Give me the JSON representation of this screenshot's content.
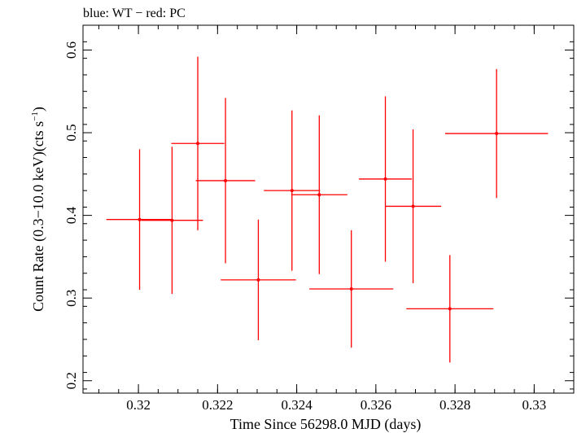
{
  "chart_data": {
    "type": "scatter",
    "title": "blue: WT − red: PC",
    "xlabel": "Time Since 56298.0 MJD (days)",
    "ylabel_main": "Count Rate (0.3−10.0 keV)(cts s",
    "ylabel_sup": "−1",
    "ylabel_close": ")",
    "xlim": [
      0.3186,
      0.331
    ],
    "ylim": [
      0.185,
      0.63
    ],
    "xticks": [
      {
        "value": 0.32,
        "label": "0.32"
      },
      {
        "value": 0.322,
        "label": "0.322"
      },
      {
        "value": 0.324,
        "label": "0.324"
      },
      {
        "value": 0.326,
        "label": "0.326"
      },
      {
        "value": 0.328,
        "label": "0.328"
      },
      {
        "value": 0.33,
        "label": "0.33"
      }
    ],
    "yticks": [
      {
        "value": 0.2,
        "label": "0.2"
      },
      {
        "value": 0.3,
        "label": "0.3"
      },
      {
        "value": 0.4,
        "label": "0.4"
      },
      {
        "value": 0.5,
        "label": "0.5"
      },
      {
        "value": 0.6,
        "label": "0.6"
      }
    ],
    "series": [
      {
        "name": "PC",
        "color": "#ff0000",
        "points": [
          {
            "x": 0.32003,
            "xerr": 0.00084,
            "y": 0.395,
            "yerr_low": 0.085,
            "yerr_high": 0.085
          },
          {
            "x": 0.32085,
            "xerr": 0.00078,
            "y": 0.394,
            "yerr_low": 0.089,
            "yerr_high": 0.089
          },
          {
            "x": 0.3215,
            "xerr": 0.00067,
            "y": 0.487,
            "yerr_low": 0.105,
            "yerr_high": 0.105
          },
          {
            "x": 0.3222,
            "xerr": 0.00075,
            "y": 0.442,
            "yerr_low": 0.1,
            "yerr_high": 0.1
          },
          {
            "x": 0.32303,
            "xerr": 0.00095,
            "y": 0.322,
            "yerr_low": 0.073,
            "yerr_high": 0.073
          },
          {
            "x": 0.32388,
            "xerr": 0.00071,
            "y": 0.43,
            "yerr_low": 0.097,
            "yerr_high": 0.097
          },
          {
            "x": 0.32457,
            "xerr": 0.00071,
            "y": 0.425,
            "yerr_low": 0.096,
            "yerr_high": 0.096
          },
          {
            "x": 0.32538,
            "xerr": 0.00106,
            "y": 0.311,
            "yerr_low": 0.071,
            "yerr_high": 0.071
          },
          {
            "x": 0.32624,
            "xerr": 0.00067,
            "y": 0.444,
            "yerr_low": 0.1,
            "yerr_high": 0.1
          },
          {
            "x": 0.32694,
            "xerr": 0.00071,
            "y": 0.411,
            "yerr_low": 0.093,
            "yerr_high": 0.093
          },
          {
            "x": 0.32787,
            "xerr": 0.0011,
            "y": 0.287,
            "yerr_low": 0.065,
            "yerr_high": 0.065
          },
          {
            "x": 0.32905,
            "xerr": 0.0013,
            "y": 0.499,
            "yerr_low": 0.078,
            "yerr_high": 0.078
          }
        ]
      }
    ]
  }
}
